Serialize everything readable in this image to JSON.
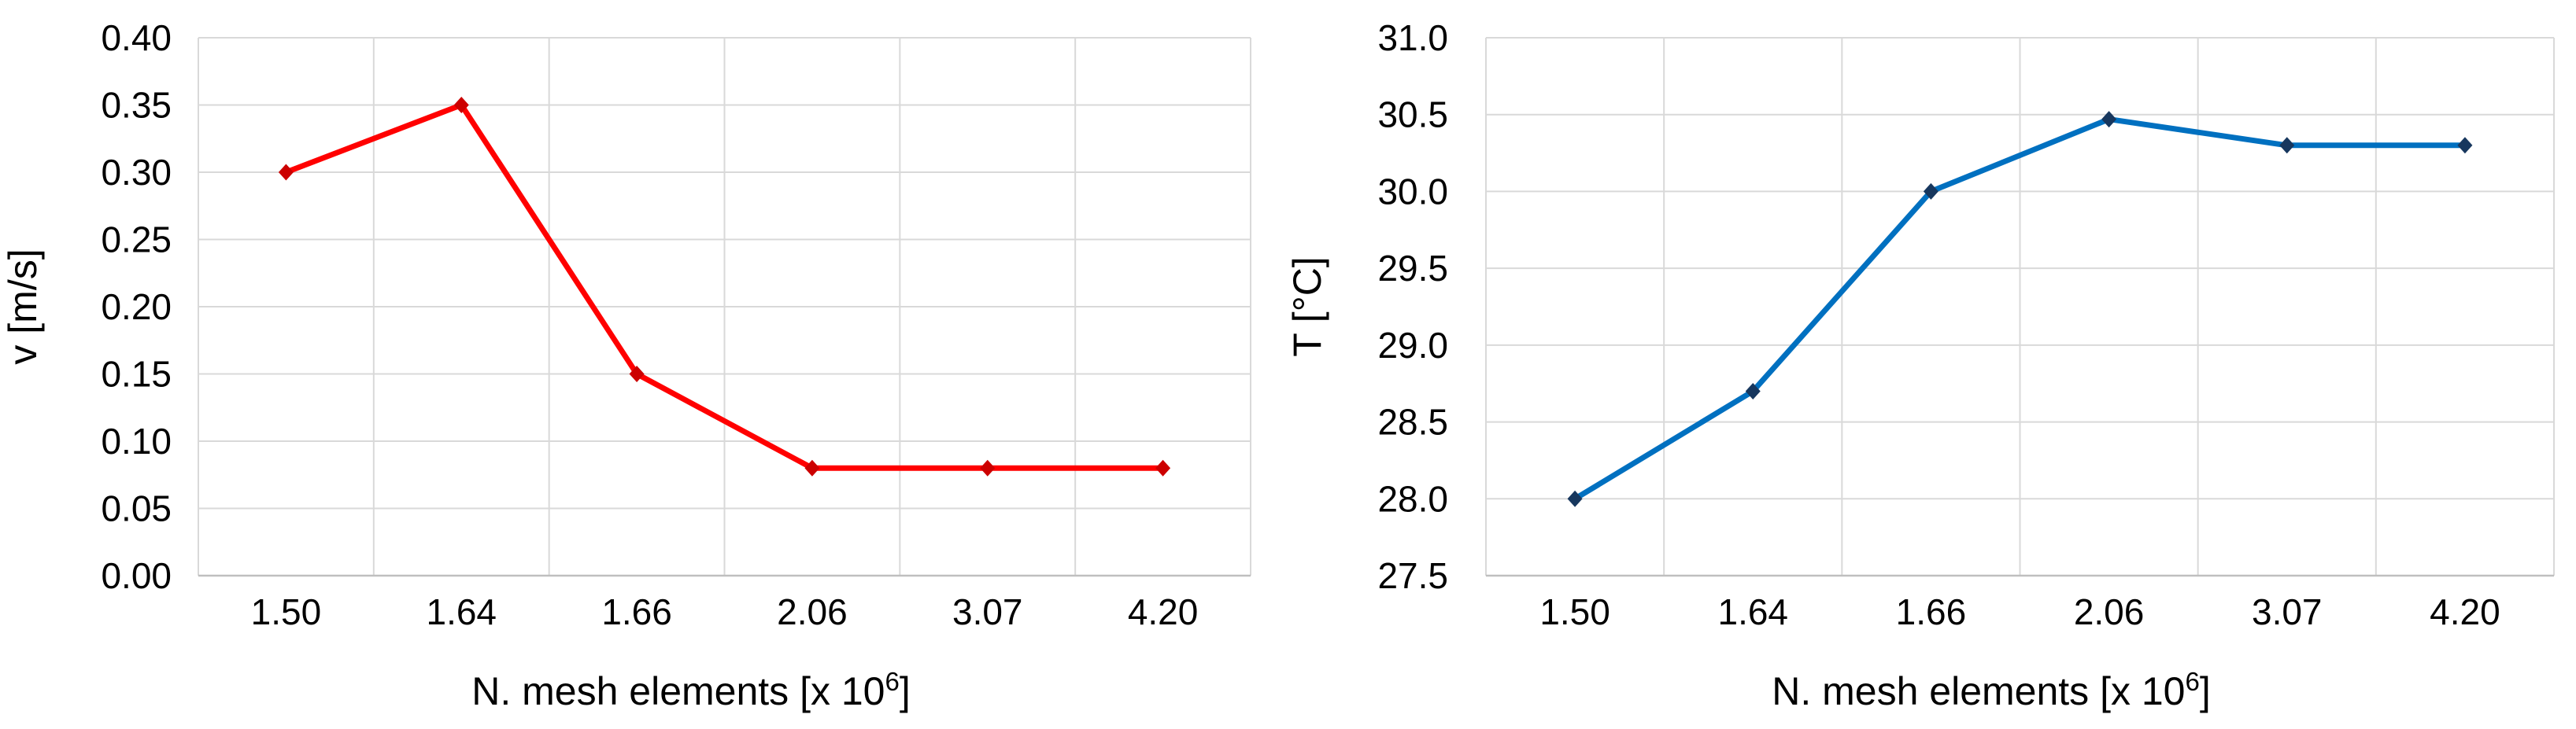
{
  "page": {
    "background": "#FFFFFF"
  },
  "colors": {
    "gridline": "#D9D9D9",
    "axis_line": "#BFBFBF",
    "text": "#000000",
    "background": "#FFFFFF",
    "velocity_line": "#FF0000",
    "velocity_marker": "#CC0000",
    "temperature_line": "#0070C0",
    "temperature_marker": "#17375E"
  },
  "chart_data": [
    {
      "id": "velocity",
      "type": "line",
      "title": "",
      "categories": [
        "1.50",
        "1.64",
        "1.66",
        "2.06",
        "3.07",
        "4.20"
      ],
      "values": [
        0.3,
        0.35,
        0.15,
        0.08,
        0.08,
        0.08
      ],
      "xlabel": "N. mesh elements  [x 10⁶]",
      "xlabel_main": "N. mesh elements  [x 10",
      "xlabel_sup": "6",
      "xlabel_end": "]",
      "ylabel": "v [m/s]",
      "ylim": [
        0.0,
        0.4
      ],
      "ystep": 0.05,
      "yticks": [
        "0.40",
        "0.35",
        "0.30",
        "0.25",
        "0.20",
        "0.15",
        "0.10",
        "0.05",
        "0.00"
      ],
      "grid": true,
      "legend": "none",
      "marker": "diamond",
      "line_color": "#FF0000",
      "marker_color": "#CC0000"
    },
    {
      "id": "temperature",
      "type": "line",
      "title": "",
      "categories": [
        "1.50",
        "1.64",
        "1.66",
        "2.06",
        "3.07",
        "4.20"
      ],
      "values": [
        28.0,
        28.7,
        30.0,
        30.47,
        30.3,
        30.3
      ],
      "xlabel": "N. mesh elements  [x 10⁶]",
      "xlabel_main": "N. mesh elements  [x 10",
      "xlabel_sup": "6",
      "xlabel_end": "]",
      "ylabel": "T [°C]",
      "ylim": [
        27.5,
        31.0
      ],
      "ystep": 0.5,
      "yticks": [
        "31.0",
        "30.5",
        "30.0",
        "29.5",
        "29.0",
        "28.5",
        "28.0",
        "27.5"
      ],
      "grid": true,
      "legend": "none",
      "marker": "diamond",
      "line_color": "#0070C0",
      "marker_color": "#17375E"
    }
  ]
}
